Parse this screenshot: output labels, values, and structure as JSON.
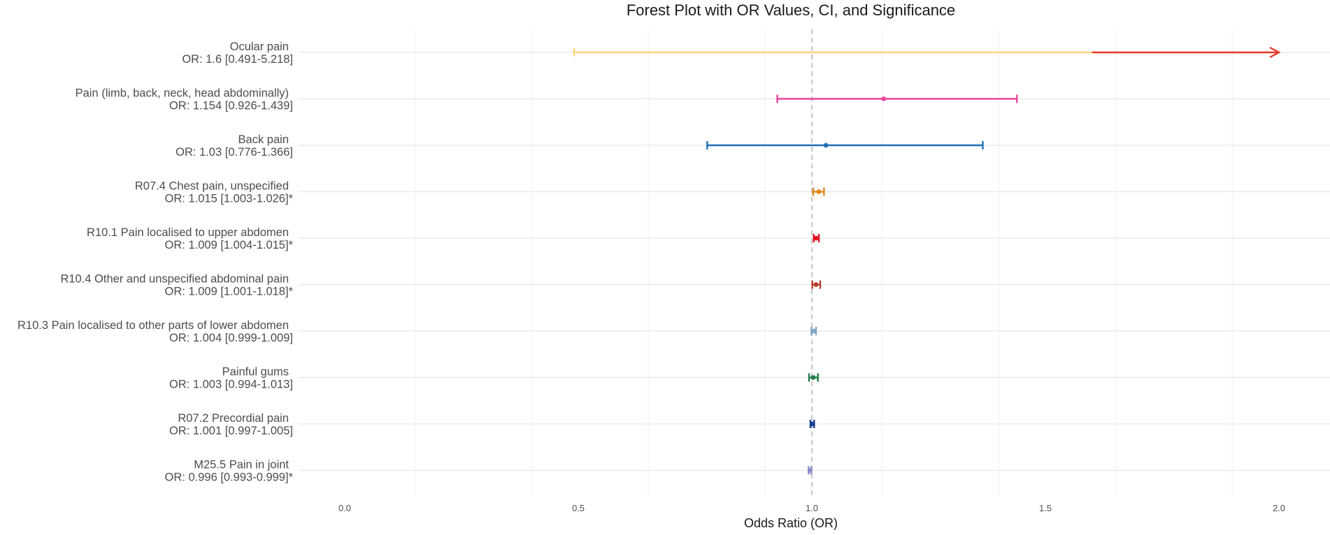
{
  "chart_data": {
    "type": "forest",
    "title": "Forest Plot with OR Values, CI, and Significance",
    "xlabel": "Odds Ratio (OR)",
    "xlim": [
      -0.1,
      2.1
    ],
    "xticks": [
      0.0,
      0.5,
      1.0,
      1.5,
      2.0
    ],
    "xtick_labels": [
      "0.0",
      "0.5",
      "1.0",
      "1.5",
      "2.0"
    ],
    "reference_line": 1.0,
    "grid": true,
    "rows": [
      {
        "name": "Ocular pain",
        "label": "OR: 1.6 [0.491-5.218]",
        "or": 1.6,
        "lower": 0.491,
        "upper": 5.218,
        "color": "#fdd67e",
        "clip_color": "#e8372a",
        "clipped_at": 2.0
      },
      {
        "name": "Pain (limb, back, neck, head abdominally)",
        "label": "OR: 1.154 [0.926-1.439]",
        "or": 1.154,
        "lower": 0.926,
        "upper": 1.439,
        "color": "#e7479a"
      },
      {
        "name": "Back pain",
        "label": "OR: 1.03 [0.776-1.366]",
        "or": 1.03,
        "lower": 0.776,
        "upper": 1.366,
        "color": "#1f6fb4"
      },
      {
        "name": "R07.4 Chest pain, unspecified",
        "label": "OR: 1.015 [1.003-1.026]*",
        "or": 1.015,
        "lower": 1.003,
        "upper": 1.026,
        "color": "#e2861b"
      },
      {
        "name": "R10.1 Pain localised to upper abdomen",
        "label": "OR: 1.009 [1.004-1.015]*",
        "or": 1.009,
        "lower": 1.004,
        "upper": 1.015,
        "color": "#e3101c"
      },
      {
        "name": "R10.4 Other and unspecified abdominal pain",
        "label": "OR: 1.009 [1.001-1.018]*",
        "or": 1.009,
        "lower": 1.001,
        "upper": 1.018,
        "color": "#b3402a"
      },
      {
        "name": "R10.3 Pain localised to other parts of lower abdomen",
        "label": "OR: 1.004 [0.999-1.009]",
        "or": 1.004,
        "lower": 0.999,
        "upper": 1.009,
        "color": "#7fa3c6"
      },
      {
        "name": "Painful gums",
        "label": "OR: 1.003 [0.994-1.013]",
        "or": 1.003,
        "lower": 0.994,
        "upper": 1.013,
        "color": "#1f7a4a"
      },
      {
        "name": "R07.2 Precordial pain",
        "label": "OR: 1.001 [0.997-1.005]",
        "or": 1.001,
        "lower": 0.997,
        "upper": 1.005,
        "color": "#163f8c"
      },
      {
        "name": "M25.5 Pain in joint",
        "label": "OR: 0.996 [0.993-0.999]*",
        "or": 0.996,
        "lower": 0.993,
        "upper": 0.999,
        "color": "#8a8fc9"
      }
    ]
  }
}
